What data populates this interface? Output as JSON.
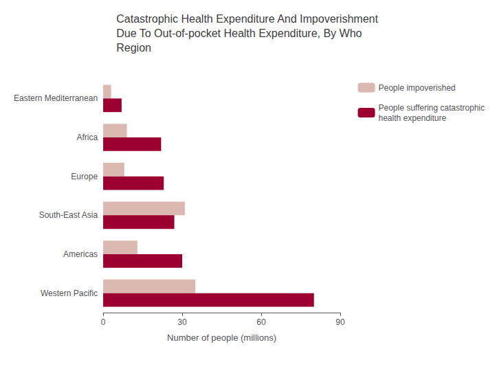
{
  "chart_data": {
    "type": "bar",
    "orientation": "horizontal",
    "title": "Catastrophic Health Expenditure And Impoverishment\nDue To Out-of-pocket Health Expenditure, By Who\nRegion",
    "categories": [
      "Eastern Mediterranean",
      "Africa",
      "Europe",
      "South-East Asia",
      "Americas",
      "Western Pacific"
    ],
    "series": [
      {
        "name": "People impoverished",
        "color": "#dbb8b0",
        "values": [
          3,
          9,
          8,
          31,
          13,
          35
        ]
      },
      {
        "name": "People suffering catastrophic\nhealth expenditure",
        "color": "#9b0030",
        "values": [
          7,
          22,
          23,
          27,
          30,
          80
        ]
      }
    ],
    "xlabel": "Number of people (millions)",
    "xlim": [
      0,
      90
    ],
    "xticks": [
      0,
      30,
      60,
      90
    ],
    "grid": false,
    "legend": "right"
  }
}
